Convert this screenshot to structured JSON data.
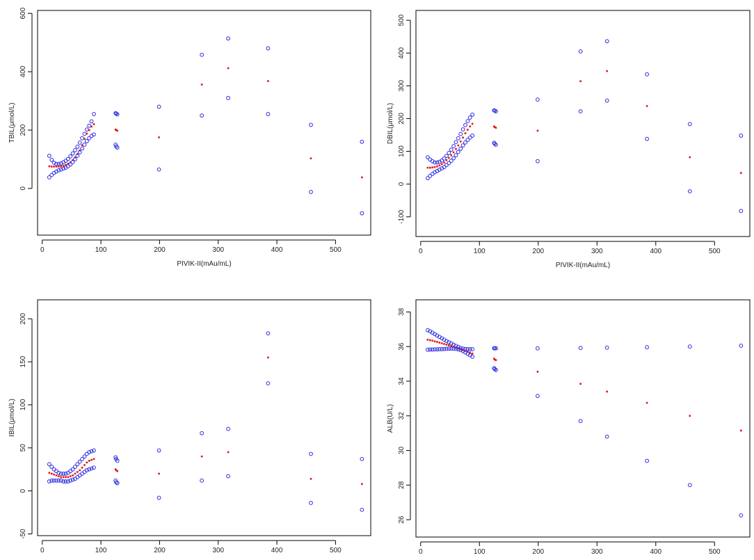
{
  "colors": {
    "ci": "#2a2ae0",
    "fit": "#e01818",
    "axis": "#000000",
    "text": "#222222"
  },
  "chart_data": [
    {
      "type": "scatter",
      "title": "",
      "xlabel": "PIVIK-II(mAu/mL)",
      "ylabel": "TBIL(μmol/L)",
      "xlim": [
        -8,
        560
      ],
      "ylim": [
        -160,
        610
      ],
      "xticks": [
        0,
        100,
        200,
        300,
        400,
        500
      ],
      "yticks": [
        0,
        200,
        400,
        600
      ],
      "grid": false,
      "legend": "none",
      "series": [
        {
          "role": "upper",
          "x": [
            12,
            16,
            20,
            24,
            28,
            32,
            36,
            40,
            44,
            48,
            52,
            56,
            60,
            64,
            68,
            72,
            76,
            80,
            84,
            88,
            125,
            126,
            128,
            199,
            272,
            317,
            385,
            458,
            545
          ],
          "y": [
            112,
            98,
            88,
            84,
            84,
            86,
            90,
            95,
            101,
            110,
            120,
            131,
            143,
            157,
            172,
            187,
            202,
            215,
            230,
            255,
            258,
            256,
            254,
            280,
            458,
            514,
            480,
            218,
            160
          ]
        },
        {
          "role": "fit",
          "x": [
            12,
            16,
            20,
            24,
            28,
            32,
            36,
            40,
            44,
            48,
            52,
            56,
            60,
            64,
            68,
            72,
            76,
            80,
            84,
            88,
            125,
            126,
            128,
            199,
            272,
            317,
            385,
            458,
            545
          ],
          "y": [
            76,
            75,
            75,
            75,
            75,
            76,
            78,
            81,
            85,
            90,
            97,
            106,
            118,
            130,
            148,
            170,
            188,
            200,
            212,
            220,
            202,
            200,
            198,
            175,
            356,
            412,
            368,
            103,
            38
          ]
        },
        {
          "role": "lower",
          "x": [
            12,
            16,
            20,
            24,
            28,
            32,
            36,
            40,
            44,
            48,
            52,
            56,
            60,
            64,
            68,
            72,
            76,
            80,
            84,
            88,
            125,
            126,
            128,
            199,
            272,
            317,
            385,
            458,
            545
          ],
          "y": [
            38,
            46,
            53,
            58,
            62,
            65,
            68,
            71,
            76,
            82,
            90,
            100,
            112,
            124,
            137,
            150,
            162,
            172,
            180,
            185,
            150,
            144,
            140,
            65,
            250,
            310,
            255,
            -12,
            -85
          ]
        }
      ]
    },
    {
      "type": "scatter",
      "title": "",
      "xlabel": "PIVIK-II(mAu/mL)",
      "ylabel": "DBIL(μmol/L)",
      "xlim": [
        -8,
        560
      ],
      "ylim": [
        -160,
        530
      ],
      "xticks": [
        0,
        100,
        200,
        300,
        400,
        500
      ],
      "yticks": [
        -100,
        0,
        100,
        200,
        300,
        400,
        500
      ],
      "grid": false,
      "legend": "none",
      "series": [
        {
          "role": "upper",
          "x": [
            12,
            16,
            20,
            24,
            28,
            32,
            36,
            40,
            44,
            48,
            52,
            56,
            60,
            64,
            68,
            72,
            76,
            80,
            84,
            88,
            125,
            126,
            128,
            199,
            272,
            317,
            385,
            458,
            545
          ],
          "y": [
            82,
            75,
            70,
            66,
            66,
            68,
            72,
            78,
            86,
            95,
            105,
            116,
            128,
            140,
            153,
            167,
            180,
            192,
            203,
            212,
            225,
            224,
            222,
            258,
            405,
            436,
            335,
            183,
            148
          ]
        },
        {
          "role": "fit",
          "x": [
            12,
            16,
            20,
            24,
            28,
            32,
            36,
            40,
            44,
            48,
            52,
            56,
            60,
            64,
            68,
            72,
            76,
            80,
            84,
            88,
            125,
            126,
            128,
            199,
            272,
            317,
            385,
            458,
            545
          ],
          "y": [
            50,
            50,
            51,
            52,
            54,
            57,
            61,
            66,
            73,
            80,
            88,
            97,
            107,
            118,
            130,
            142,
            155,
            166,
            176,
            184,
            176,
            174,
            172,
            163,
            314,
            345,
            238,
            82,
            34
          ]
        },
        {
          "role": "lower",
          "x": [
            12,
            16,
            20,
            24,
            28,
            32,
            36,
            40,
            44,
            48,
            52,
            56,
            60,
            64,
            68,
            72,
            76,
            80,
            84,
            88,
            125,
            126,
            128,
            199,
            272,
            317,
            385,
            458,
            545
          ],
          "y": [
            18,
            25,
            31,
            36,
            40,
            44,
            48,
            52,
            58,
            64,
            71,
            79,
            88,
            98,
            108,
            118,
            127,
            135,
            142,
            148,
            126,
            123,
            120,
            70,
            222,
            255,
            138,
            -22,
            -82
          ]
        }
      ]
    },
    {
      "type": "scatter",
      "title": "",
      "xlabel": "PIVIK-II(mAu/mL)",
      "ylabel": "IBIL(μmol/L)",
      "xlim": [
        -8,
        560
      ],
      "ylim": [
        -52,
        222
      ],
      "xticks": [
        0,
        100,
        200,
        300,
        400,
        500
      ],
      "yticks": [
        -50,
        0,
        50,
        100,
        150,
        200
      ],
      "grid": false,
      "legend": "none",
      "series": [
        {
          "role": "upper",
          "x": [
            12,
            16,
            20,
            24,
            28,
            32,
            36,
            40,
            44,
            48,
            52,
            56,
            60,
            64,
            68,
            72,
            76,
            80,
            84,
            88,
            125,
            126,
            128,
            199,
            272,
            317,
            385,
            458,
            545
          ],
          "y": [
            31,
            28,
            25,
            23,
            21,
            20,
            20,
            20,
            21,
            23,
            25,
            28,
            31,
            34,
            37,
            40,
            43,
            45,
            46,
            47,
            39,
            37,
            35,
            47,
            67,
            72,
            183,
            43,
            37
          ]
        },
        {
          "role": "fit",
          "x": [
            12,
            16,
            20,
            24,
            28,
            32,
            36,
            40,
            44,
            48,
            52,
            56,
            60,
            64,
            68,
            72,
            76,
            80,
            84,
            88,
            125,
            126,
            128,
            199,
            272,
            317,
            385,
            458,
            545
          ],
          "y": [
            21,
            20,
            19,
            18,
            17,
            16,
            16,
            16,
            16,
            17,
            18,
            20,
            22,
            24,
            27,
            30,
            33,
            35,
            36,
            37,
            25,
            24,
            23,
            20,
            40,
            45,
            155,
            14,
            8
          ]
        },
        {
          "role": "lower",
          "x": [
            12,
            16,
            20,
            24,
            28,
            32,
            36,
            40,
            44,
            48,
            52,
            56,
            60,
            64,
            68,
            72,
            76,
            80,
            84,
            88,
            125,
            126,
            128,
            199,
            272,
            317,
            385,
            458,
            545
          ],
          "y": [
            11,
            12,
            12,
            12,
            12,
            12,
            11,
            11,
            11,
            12,
            13,
            14,
            16,
            18,
            20,
            22,
            24,
            25,
            26,
            27,
            12,
            10,
            9,
            -8,
            12,
            17,
            125,
            -14,
            -22
          ]
        }
      ]
    },
    {
      "type": "scatter",
      "title": "",
      "xlabel": "PIVIK-II(mAu/mL)",
      "ylabel": "ALB(U/L)",
      "xlim": [
        -8,
        560
      ],
      "ylim": [
        25,
        38.7
      ],
      "xticks": [
        0,
        100,
        200,
        300,
        400,
        500
      ],
      "yticks": [
        26,
        28,
        30,
        32,
        34,
        36,
        38
      ],
      "grid": false,
      "legend": "none",
      "series": [
        {
          "role": "upper",
          "x": [
            12,
            16,
            20,
            24,
            28,
            32,
            36,
            40,
            44,
            48,
            52,
            56,
            60,
            64,
            68,
            72,
            76,
            80,
            84,
            88,
            125,
            126,
            128,
            199,
            272,
            317,
            385,
            458,
            545
          ],
          "y": [
            36.95,
            36.88,
            36.8,
            36.72,
            36.64,
            36.56,
            36.48,
            36.4,
            36.32,
            36.25,
            36.18,
            36.11,
            36.04,
            35.98,
            35.92,
            35.88,
            35.86,
            35.85,
            35.85,
            35.85,
            35.9,
            35.9,
            35.9,
            35.9,
            35.92,
            35.94,
            35.96,
            36.0,
            36.05
          ]
        },
        {
          "role": "fit",
          "x": [
            12,
            16,
            20,
            24,
            28,
            32,
            36,
            40,
            44,
            48,
            52,
            56,
            60,
            64,
            68,
            72,
            76,
            80,
            84,
            88,
            125,
            126,
            128,
            199,
            272,
            317,
            385,
            458,
            545
          ],
          "y": [
            36.4,
            36.37,
            36.34,
            36.3,
            36.27,
            36.23,
            36.19,
            36.15,
            36.11,
            36.07,
            36.03,
            35.99,
            35.95,
            35.9,
            35.85,
            35.8,
            35.75,
            35.7,
            35.65,
            35.6,
            35.3,
            35.25,
            35.22,
            34.55,
            33.85,
            33.4,
            32.75,
            32.0,
            31.15
          ]
        },
        {
          "role": "lower",
          "x": [
            12,
            16,
            20,
            24,
            28,
            32,
            36,
            40,
            44,
            48,
            52,
            56,
            60,
            64,
            68,
            72,
            76,
            80,
            84,
            88,
            125,
            126,
            128,
            199,
            272,
            317,
            385,
            458,
            545
          ],
          "y": [
            35.82,
            35.83,
            35.83,
            35.84,
            35.84,
            35.85,
            35.85,
            35.86,
            35.87,
            35.88,
            35.88,
            35.88,
            35.87,
            35.84,
            35.8,
            35.74,
            35.66,
            35.58,
            35.5,
            35.42,
            34.75,
            34.7,
            34.65,
            33.15,
            31.7,
            30.8,
            29.4,
            28.0,
            26.25
          ]
        }
      ]
    }
  ]
}
